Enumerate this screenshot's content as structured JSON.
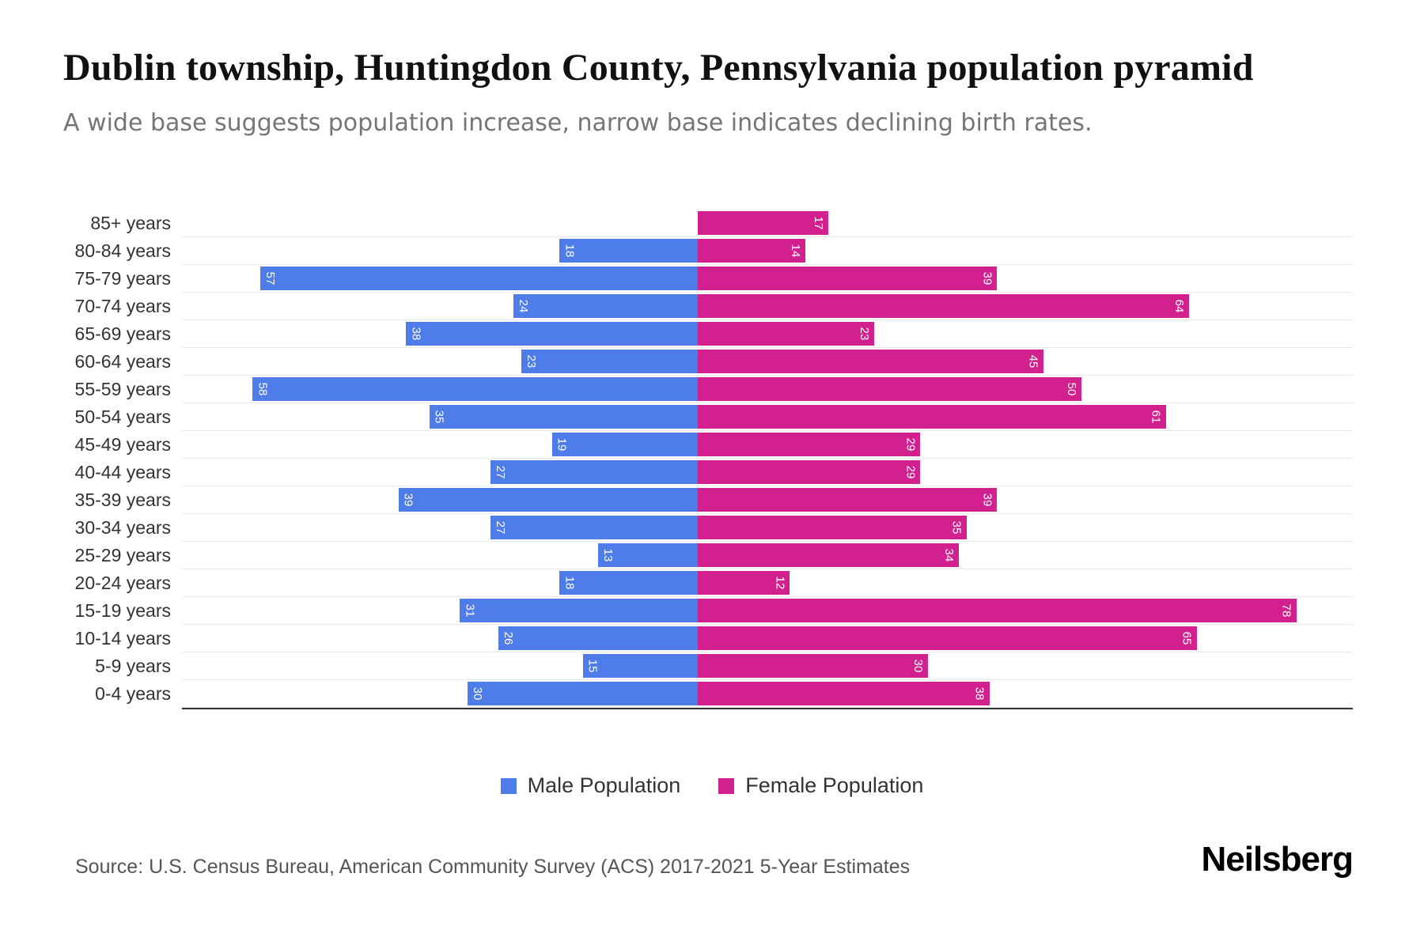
{
  "page": {
    "title": "Dublin township, Huntingdon County, Pennsylvania population pyramid",
    "subtitle": "A wide base suggests population increase, narrow base indicates declining birth rates.",
    "source": "Source: U.S. Census Bureau, American Community Survey (ACS) 2017-2021 5-Year Estimates",
    "brand": "Neilsberg"
  },
  "legend": [
    {
      "label": "Male Population",
      "color": "#4e7ce8"
    },
    {
      "label": "Female Population",
      "color": "#d2218f"
    }
  ],
  "chart_data": {
    "type": "bar",
    "variant": "population-pyramid",
    "orientation": "horizontal",
    "title": "Dublin township, Huntingdon County, Pennsylvania population pyramid",
    "subtitle": "A wide base suggests population increase, narrow base indicates declining birth rates.",
    "categories": [
      "85+ years",
      "80-84 years",
      "75-79 years",
      "70-74 years",
      "65-69 years",
      "60-64 years",
      "55-59 years",
      "50-54 years",
      "45-49 years",
      "40-44 years",
      "35-39 years",
      "30-34 years",
      "25-29 years",
      "20-24 years",
      "15-19 years",
      "10-14 years",
      "5-9 years",
      "0-4 years"
    ],
    "series": [
      {
        "name": "Male Population",
        "side": "left",
        "color": "#4e7ce8",
        "values": [
          0,
          18,
          57,
          24,
          38,
          23,
          58,
          35,
          19,
          27,
          39,
          27,
          13,
          18,
          31,
          26,
          15,
          30
        ]
      },
      {
        "name": "Female Population",
        "side": "right",
        "color": "#d2218f",
        "values": [
          17,
          14,
          39,
          64,
          23,
          45,
          50,
          61,
          29,
          29,
          39,
          35,
          34,
          12,
          78,
          65,
          30,
          38
        ]
      }
    ],
    "value_labels": "inside bar end, rotated 90deg, white",
    "xlim": [
      0,
      80
    ],
    "grid": "horizontal row separator lines",
    "legend_position": "bottom-center"
  }
}
